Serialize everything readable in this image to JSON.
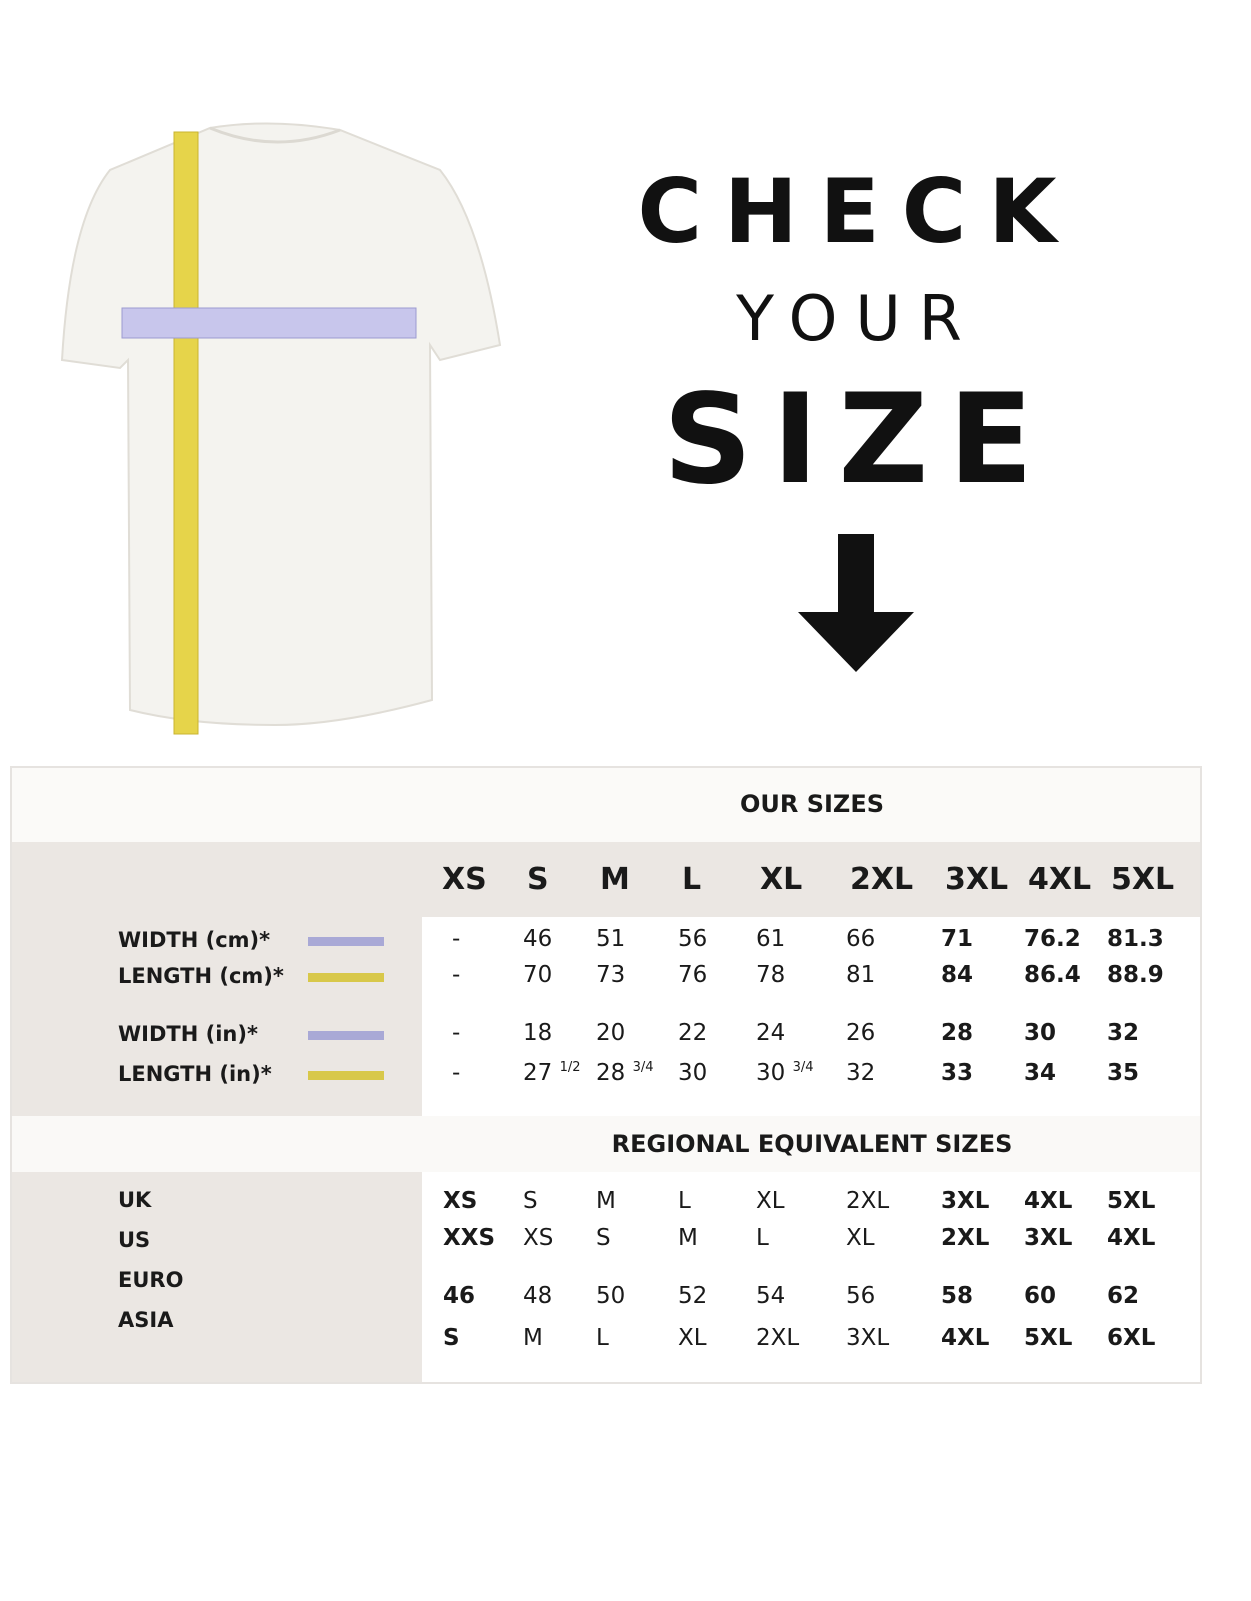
{
  "heading": {
    "line1": "CHECK",
    "line2": "YOUR",
    "line3": "SIZE"
  },
  "colors": {
    "width_bar": "#a9a9d6",
    "length_bar": "#d8c84a",
    "panel_gray": "#ebe7e3"
  },
  "our_sizes": {
    "title": "OUR SIZES",
    "sizes": [
      "XS",
      "S",
      "M",
      "L",
      "XL",
      "2XL",
      "3XL",
      "4XL",
      "5XL"
    ],
    "rows": [
      {
        "label": "WIDTH (cm)*",
        "bar": "width",
        "values": [
          "-",
          "46",
          "51",
          "56",
          "61",
          "66",
          "71",
          "76.2",
          "81.3"
        ]
      },
      {
        "label": "LENGTH (cm)*",
        "bar": "length",
        "values": [
          "-",
          "70",
          "73",
          "76",
          "78",
          "81",
          "84",
          "86.4",
          "88.9"
        ]
      },
      {
        "label": "WIDTH (in)*",
        "bar": "width",
        "values": [
          "-",
          "18",
          "20",
          "22",
          "24",
          "26",
          "28",
          "30",
          "32"
        ]
      },
      {
        "label": "LENGTH (in)*",
        "bar": "length",
        "values": [
          "-",
          "27",
          "28",
          "30",
          "30",
          "32",
          "33",
          "34",
          "35"
        ],
        "fractions": [
          "",
          "1/2",
          "3/4",
          "",
          "3/4",
          "",
          "",
          "",
          ""
        ]
      }
    ]
  },
  "regional": {
    "title": "REGIONAL EQUIVALENT SIZES",
    "rows": [
      {
        "label": "UK",
        "values": [
          "XS",
          "S",
          "M",
          "L",
          "XL",
          "2XL",
          "3XL",
          "4XL",
          "5XL"
        ]
      },
      {
        "label": "US",
        "values": [
          "XXS",
          "XS",
          "S",
          "M",
          "L",
          "XL",
          "2XL",
          "3XL",
          "4XL"
        ]
      },
      {
        "label": "EURO",
        "values": [
          "46",
          "48",
          "50",
          "52",
          "54",
          "56",
          "58",
          "60",
          "62"
        ]
      },
      {
        "label": "ASIA",
        "values": [
          "S",
          "M",
          "L",
          "XL",
          "2XL",
          "3XL",
          "4XL",
          "5XL",
          "6XL"
        ]
      }
    ]
  }
}
